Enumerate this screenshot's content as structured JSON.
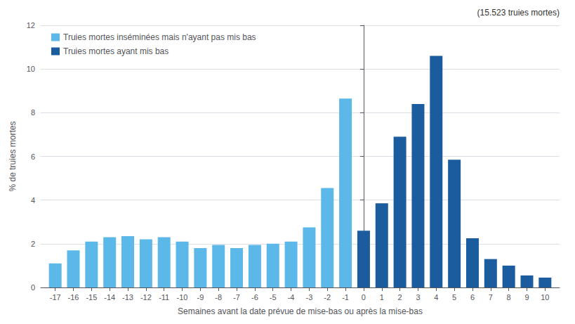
{
  "chart_data": {
    "type": "bar",
    "x": [
      -17,
      -16,
      -15,
      -14,
      -13,
      -12,
      -11,
      -10,
      -9,
      -8,
      -7,
      -6,
      -5,
      -4,
      -3,
      -2,
      -1,
      0,
      1,
      2,
      3,
      4,
      5,
      6,
      7,
      8,
      9,
      10
    ],
    "series": [
      {
        "name": "Truies mortes inséminées mais n'ayant pas mis bas",
        "color": "#5BB8E8",
        "values": [
          1.1,
          1.7,
          2.1,
          2.3,
          2.35,
          2.2,
          2.3,
          2.1,
          1.8,
          1.95,
          1.8,
          1.95,
          2.0,
          2.1,
          2.75,
          4.55,
          8.65,
          null,
          null,
          null,
          null,
          null,
          null,
          null,
          null,
          null,
          null,
          null
        ]
      },
      {
        "name": "Truies mortes ayant mis bas",
        "color": "#1B5C9E",
        "values": [
          null,
          null,
          null,
          null,
          null,
          null,
          null,
          null,
          null,
          null,
          null,
          null,
          null,
          null,
          null,
          null,
          null,
          2.6,
          3.85,
          6.9,
          8.4,
          10.6,
          5.85,
          2.25,
          1.3,
          1.0,
          0.55,
          0.45
        ]
      }
    ],
    "xlabel": "Semaines avant la date prévue de mise-bas ou après la mise-bas",
    "ylabel": "% de truies mortes",
    "xlim": [
      -17.8,
      10.8
    ],
    "xticks": [
      -17,
      -16,
      -15,
      -14,
      -13,
      -12,
      -11,
      -10,
      -9,
      -8,
      -7,
      -6,
      -5,
      -4,
      -3,
      -2,
      -1,
      0,
      1,
      2,
      3,
      4,
      5,
      6,
      7,
      8,
      9,
      10
    ],
    "ylim": [
      0,
      12
    ],
    "yticks": [
      0,
      2,
      4,
      6,
      8,
      10,
      12
    ],
    "annotation": "(15.523 truies mortes)",
    "grid": true,
    "legend": "upper left"
  }
}
